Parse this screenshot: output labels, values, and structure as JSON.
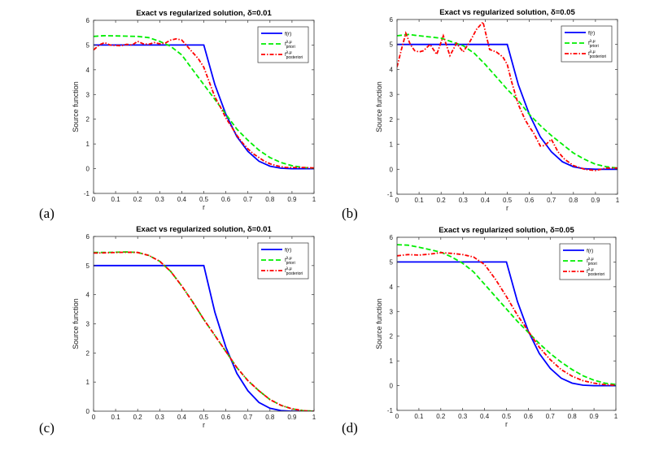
{
  "chart_data": [
    {
      "panel": "(a)",
      "type": "line",
      "title": "Exact vs regularized solution, δ=0.01",
      "xlabel": "r",
      "ylabel": "Source function",
      "xlim": [
        0,
        1
      ],
      "ylim": [
        -1,
        6
      ],
      "xticks": [
        "0",
        "0.1",
        "0.2",
        "0.3",
        "0.4",
        "0.5",
        "0.6",
        "0.7",
        "0.8",
        "0.9",
        "1"
      ],
      "yticks": [
        "-1",
        "0",
        "1",
        "2",
        "3",
        "4",
        "5",
        "6"
      ],
      "grid": false,
      "legend": "top-right",
      "series": [
        {
          "name": "f(r)",
          "color": "#0000ff",
          "style": "solid",
          "x": [
            0,
            0.05,
            0.1,
            0.15,
            0.2,
            0.25,
            0.3,
            0.35,
            0.4,
            0.45,
            0.5,
            0.55,
            0.6,
            0.65,
            0.7,
            0.75,
            0.8,
            0.85,
            0.9,
            0.95,
            1
          ],
          "y": [
            5,
            5,
            5,
            5,
            5,
            5,
            5,
            5,
            5,
            5,
            5,
            3.4,
            2.2,
            1.3,
            0.7,
            0.3,
            0.1,
            0.02,
            0,
            0,
            0
          ]
        },
        {
          "name": "f^{λ,μ}_{priori}",
          "color": "#00ee00",
          "style": "dashed",
          "x": [
            0,
            0.05,
            0.1,
            0.15,
            0.2,
            0.25,
            0.3,
            0.35,
            0.4,
            0.45,
            0.5,
            0.55,
            0.6,
            0.65,
            0.7,
            0.75,
            0.8,
            0.85,
            0.9,
            0.95,
            1
          ],
          "y": [
            5.35,
            5.38,
            5.37,
            5.36,
            5.35,
            5.3,
            5.15,
            4.95,
            4.6,
            4.0,
            3.4,
            2.8,
            2.2,
            1.6,
            1.15,
            0.75,
            0.45,
            0.25,
            0.12,
            0.05,
            0.02
          ]
        },
        {
          "name": "f^{λ,μ}_{posteriori}",
          "color": "#ff0000",
          "style": "dashdot",
          "x": [
            0,
            0.025,
            0.05,
            0.075,
            0.1,
            0.125,
            0.15,
            0.175,
            0.2,
            0.225,
            0.25,
            0.275,
            0.3,
            0.325,
            0.35,
            0.375,
            0.4,
            0.425,
            0.45,
            0.475,
            0.5,
            0.525,
            0.55,
            0.575,
            0.6,
            0.625,
            0.65,
            0.675,
            0.7,
            0.725,
            0.75,
            0.775,
            0.8,
            0.825,
            0.85,
            0.875,
            0.9,
            0.925,
            0.95,
            0.975,
            1
          ],
          "y": [
            4.8,
            5.0,
            5.1,
            5.0,
            4.98,
            4.97,
            5.03,
            5.0,
            5.15,
            5.05,
            5.03,
            5.1,
            5.05,
            5.08,
            5.2,
            5.25,
            5.2,
            4.95,
            4.7,
            4.45,
            4.1,
            3.5,
            2.9,
            2.5,
            2.05,
            1.7,
            1.35,
            1.05,
            0.8,
            0.6,
            0.45,
            0.3,
            0.2,
            0.13,
            0.08,
            0.05,
            0.05,
            0.05,
            0.05,
            0.04,
            0.03
          ]
        }
      ]
    },
    {
      "panel": "(b)",
      "type": "line",
      "title": "Exact vs regularized solution, δ=0.05",
      "xlabel": "r",
      "ylabel": "Source function",
      "xlim": [
        0,
        1
      ],
      "ylim": [
        -1,
        6
      ],
      "xticks": [
        "0",
        "0.1",
        "0.2",
        "0.3",
        "0.4",
        "0.5",
        "0.6",
        "0.7",
        "0.8",
        "0.9",
        "1"
      ],
      "yticks": [
        "-1",
        "0",
        "1",
        "2",
        "3",
        "4",
        "5",
        "6"
      ],
      "grid": false,
      "legend": "top-right",
      "series": [
        {
          "name": "f(r)",
          "color": "#0000ff",
          "style": "solid",
          "x": [
            0,
            0.05,
            0.1,
            0.15,
            0.2,
            0.25,
            0.3,
            0.35,
            0.4,
            0.45,
            0.5,
            0.55,
            0.6,
            0.65,
            0.7,
            0.75,
            0.8,
            0.85,
            0.9,
            0.95,
            1
          ],
          "y": [
            5,
            5,
            5,
            5,
            5,
            5,
            5,
            5,
            5,
            5,
            5,
            3.4,
            2.2,
            1.3,
            0.7,
            0.3,
            0.1,
            0.02,
            0,
            0,
            0
          ]
        },
        {
          "name": "f^{λ,μ}_{priori}",
          "color": "#00ee00",
          "style": "dashed",
          "x": [
            0,
            0.05,
            0.1,
            0.15,
            0.2,
            0.25,
            0.3,
            0.35,
            0.4,
            0.45,
            0.5,
            0.55,
            0.6,
            0.65,
            0.7,
            0.75,
            0.8,
            0.85,
            0.9,
            0.95,
            1
          ],
          "y": [
            5.35,
            5.4,
            5.35,
            5.3,
            5.25,
            5.1,
            4.95,
            4.65,
            4.2,
            3.7,
            3.2,
            2.75,
            2.2,
            1.75,
            1.35,
            1.0,
            0.65,
            0.4,
            0.2,
            0.1,
            0.05
          ]
        },
        {
          "name": "f^{λ,μ}_{posteriori}",
          "color": "#ff0000",
          "style": "dashdot",
          "x": [
            0,
            0.02,
            0.04,
            0.06,
            0.08,
            0.1,
            0.12,
            0.15,
            0.18,
            0.21,
            0.24,
            0.27,
            0.3,
            0.33,
            0.36,
            0.39,
            0.42,
            0.45,
            0.48,
            0.5,
            0.52,
            0.55,
            0.58,
            0.6,
            0.62,
            0.65,
            0.67,
            0.7,
            0.73,
            0.76,
            0.8,
            0.85,
            0.9,
            0.95,
            1
          ],
          "y": [
            4.1,
            4.8,
            5.45,
            5.0,
            4.75,
            4.7,
            4.75,
            5.0,
            4.6,
            5.35,
            4.55,
            5.05,
            4.7,
            5.1,
            5.6,
            5.9,
            4.8,
            4.7,
            4.5,
            4.2,
            3.5,
            2.6,
            2.0,
            1.7,
            1.45,
            0.93,
            0.95,
            1.2,
            0.7,
            0.4,
            0.15,
            0.0,
            -0.05,
            0.05,
            0.05
          ]
        }
      ]
    },
    {
      "panel": "(c)",
      "type": "line",
      "title": "Exact vs regularized solution, δ=0.01",
      "xlabel": "r",
      "ylabel": "Source function",
      "xlim": [
        0,
        1
      ],
      "ylim": [
        0,
        6
      ],
      "xticks": [
        "0",
        "0.1",
        "0.2",
        "0.3",
        "0.4",
        "0.5",
        "0.6",
        "0.7",
        "0.8",
        "0.9",
        "1"
      ],
      "yticks": [
        "0",
        "1",
        "2",
        "3",
        "4",
        "5",
        "6"
      ],
      "grid": false,
      "legend": "top-right",
      "series": [
        {
          "name": "f(r)",
          "color": "#0000ff",
          "style": "solid",
          "x": [
            0,
            0.05,
            0.1,
            0.15,
            0.2,
            0.25,
            0.3,
            0.35,
            0.4,
            0.45,
            0.5,
            0.55,
            0.6,
            0.65,
            0.7,
            0.75,
            0.8,
            0.85,
            0.9,
            0.95,
            1
          ],
          "y": [
            5,
            5,
            5,
            5,
            5,
            5,
            5,
            5,
            5,
            5,
            5,
            3.4,
            2.2,
            1.3,
            0.7,
            0.3,
            0.1,
            0.02,
            0,
            0,
            0
          ]
        },
        {
          "name": "f^{λ,μ}_{priori}",
          "color": "#00ee00",
          "style": "dashed",
          "x": [
            0,
            0.05,
            0.1,
            0.15,
            0.2,
            0.25,
            0.3,
            0.35,
            0.4,
            0.45,
            0.5,
            0.55,
            0.6,
            0.65,
            0.7,
            0.75,
            0.8,
            0.85,
            0.9,
            0.95,
            1
          ],
          "y": [
            5.45,
            5.45,
            5.46,
            5.47,
            5.45,
            5.35,
            5.15,
            4.8,
            4.3,
            3.75,
            3.15,
            2.6,
            2.05,
            1.5,
            1.05,
            0.7,
            0.4,
            0.2,
            0.08,
            0.02,
            0
          ]
        },
        {
          "name": "f^{λ,μ}_{posteriori}",
          "color": "#ff0000",
          "style": "dashdot",
          "x": [
            0,
            0.05,
            0.1,
            0.15,
            0.2,
            0.25,
            0.3,
            0.35,
            0.4,
            0.45,
            0.5,
            0.55,
            0.6,
            0.65,
            0.7,
            0.75,
            0.8,
            0.85,
            0.9,
            0.95,
            1
          ],
          "y": [
            5.43,
            5.44,
            5.45,
            5.46,
            5.45,
            5.35,
            5.15,
            4.8,
            4.3,
            3.75,
            3.15,
            2.6,
            2.05,
            1.5,
            1.05,
            0.7,
            0.4,
            0.2,
            0.08,
            0.02,
            0
          ]
        }
      ]
    },
    {
      "panel": "(d)",
      "type": "line",
      "title": "Exact vs regularized solution, δ=0.05",
      "xlabel": "r",
      "ylabel": "Source function",
      "xlim": [
        0,
        1
      ],
      "ylim": [
        -1,
        6
      ],
      "xticks": [
        "0",
        "0.1",
        "0.2",
        "0.3",
        "0.4",
        "0.5",
        "0.6",
        "0.7",
        "0.8",
        "0.9",
        "1"
      ],
      "yticks": [
        "-1",
        "0",
        "1",
        "2",
        "3",
        "4",
        "5",
        "6"
      ],
      "grid": false,
      "legend": "top-right",
      "series": [
        {
          "name": "f(r)",
          "color": "#0000ff",
          "style": "solid",
          "x": [
            0,
            0.05,
            0.1,
            0.15,
            0.2,
            0.25,
            0.3,
            0.35,
            0.4,
            0.45,
            0.5,
            0.55,
            0.6,
            0.65,
            0.7,
            0.75,
            0.8,
            0.85,
            0.9,
            0.95,
            1
          ],
          "y": [
            5,
            5,
            5,
            5,
            5,
            5,
            5,
            5,
            5,
            5,
            5,
            3.4,
            2.2,
            1.3,
            0.7,
            0.3,
            0.1,
            0.02,
            0,
            0,
            0
          ]
        },
        {
          "name": "f^{λ,μ}_{priori}",
          "color": "#00ee00",
          "style": "dashed",
          "x": [
            0,
            0.05,
            0.1,
            0.15,
            0.2,
            0.25,
            0.3,
            0.35,
            0.4,
            0.45,
            0.5,
            0.55,
            0.6,
            0.65,
            0.7,
            0.75,
            0.8,
            0.85,
            0.9,
            0.95,
            1
          ],
          "y": [
            5.7,
            5.68,
            5.6,
            5.5,
            5.4,
            5.2,
            4.95,
            4.6,
            4.1,
            3.6,
            3.1,
            2.6,
            2.15,
            1.7,
            1.3,
            0.95,
            0.65,
            0.4,
            0.22,
            0.1,
            0.05
          ]
        },
        {
          "name": "f^{λ,μ}_{posteriori}",
          "color": "#ff0000",
          "style": "dashdot",
          "x": [
            0,
            0.05,
            0.1,
            0.15,
            0.2,
            0.25,
            0.3,
            0.35,
            0.4,
            0.45,
            0.5,
            0.55,
            0.6,
            0.65,
            0.7,
            0.75,
            0.8,
            0.85,
            0.9,
            0.95,
            1
          ],
          "y": [
            5.25,
            5.3,
            5.28,
            5.32,
            5.38,
            5.35,
            5.3,
            5.2,
            4.9,
            4.3,
            3.6,
            2.85,
            2.2,
            1.55,
            1.05,
            0.65,
            0.38,
            0.2,
            0.1,
            0.04,
            0.02
          ]
        }
      ]
    }
  ]
}
